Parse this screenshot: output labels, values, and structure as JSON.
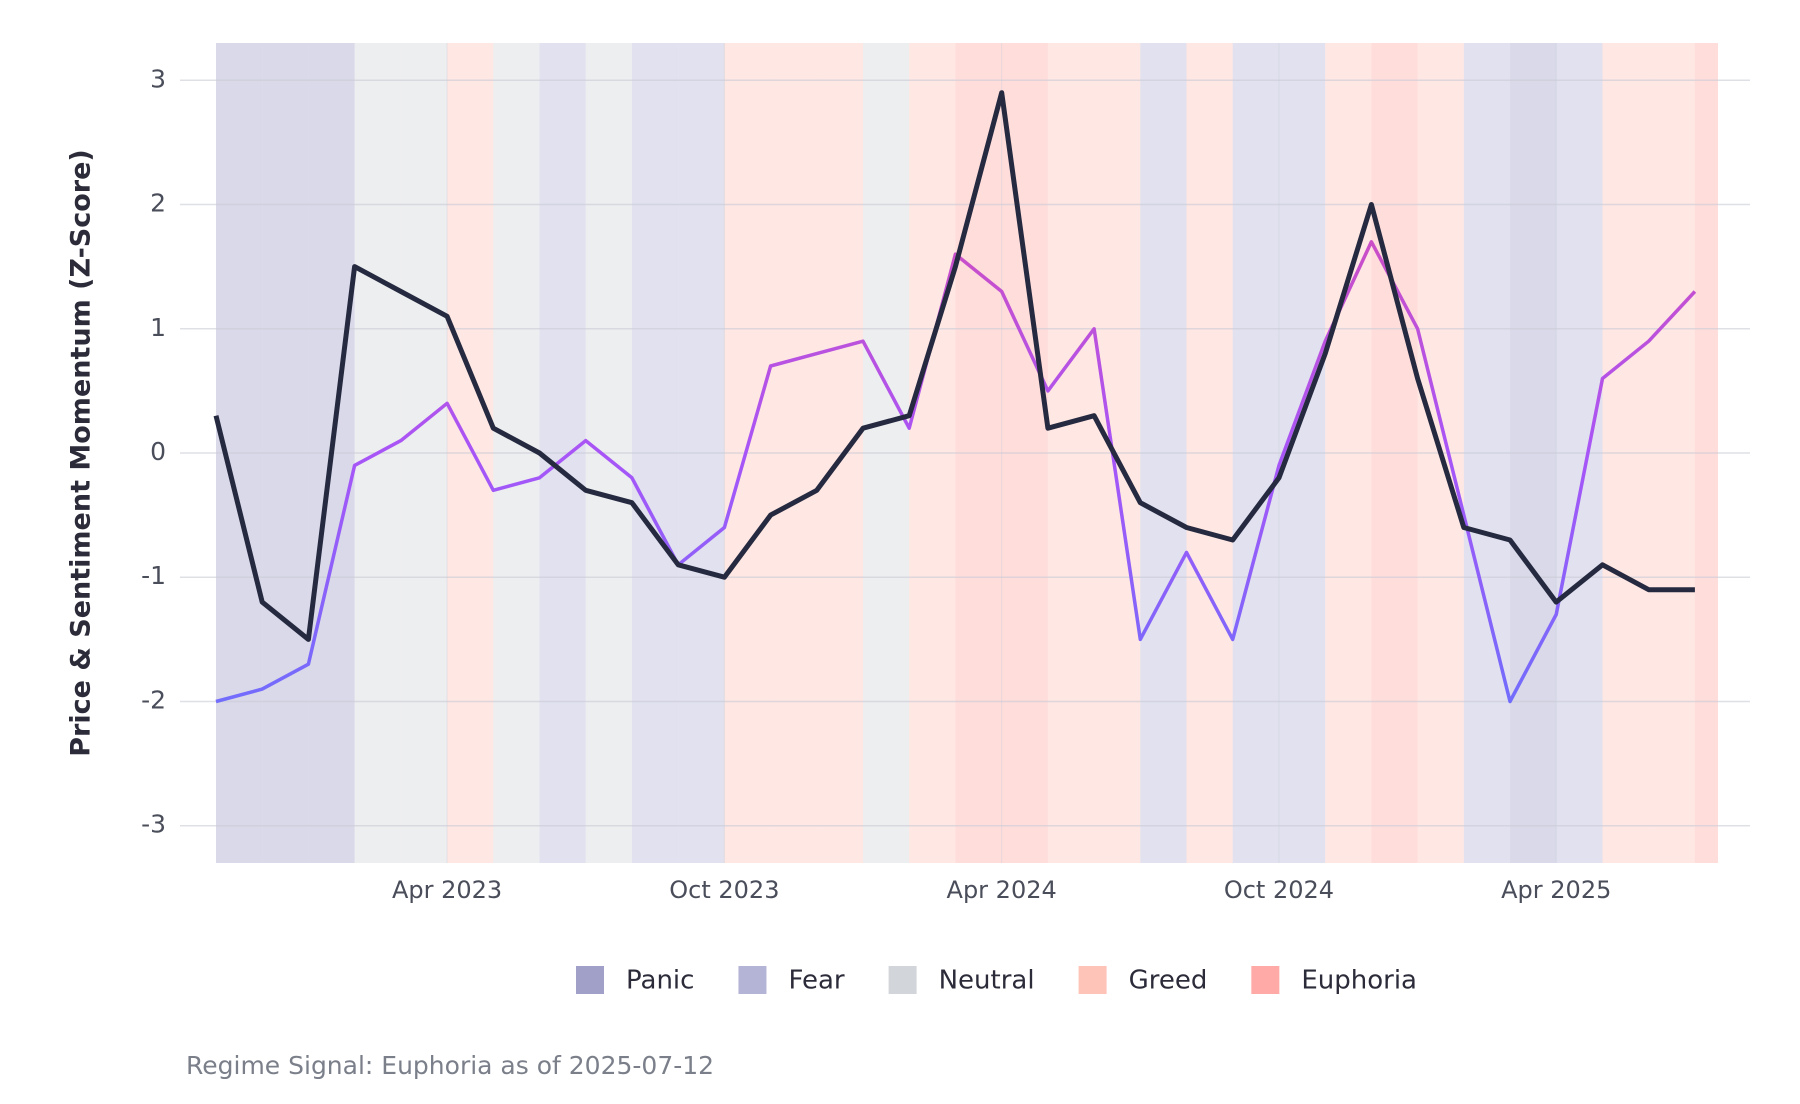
{
  "chart_data": {
    "type": "line",
    "y_label": "Price & Sentiment Momentum (Z-Score)",
    "caption": "Regime Signal: Euphoria as of 2025-07-12",
    "x": [
      "2022-11",
      "2022-12",
      "2023-01",
      "2023-02",
      "2023-03",
      "2023-04",
      "2023-05",
      "2023-06",
      "2023-07",
      "2023-08",
      "2023-09",
      "2023-10",
      "2023-11",
      "2023-12",
      "2024-01",
      "2024-02",
      "2024-03",
      "2024-04",
      "2024-05",
      "2024-06",
      "2024-07",
      "2024-08",
      "2024-09",
      "2024-10",
      "2024-11",
      "2024-12",
      "2025-01",
      "2025-02",
      "2025-03",
      "2025-04",
      "2025-05",
      "2025-06",
      "2025-07"
    ],
    "xlim": [
      "2022-11",
      "2025-07"
    ],
    "xticks": [
      {
        "value": "2023-04",
        "label": "Apr 2023"
      },
      {
        "value": "2023-10",
        "label": "Oct 2023"
      },
      {
        "value": "2024-04",
        "label": "Apr 2024"
      },
      {
        "value": "2024-10",
        "label": "Oct 2024"
      },
      {
        "value": "2025-04",
        "label": "Apr 2025"
      }
    ],
    "ylim": [
      -3.3,
      3.3
    ],
    "yticks": [
      -3,
      -2,
      -1,
      0,
      1,
      2,
      3
    ],
    "grid": true,
    "series": [
      {
        "color": "#262a40",
        "values": [
          0.3,
          -1.2,
          -1.5,
          1.5,
          1.3,
          1.1,
          0.2,
          0.0,
          -0.3,
          -0.4,
          -0.9,
          -1.0,
          -0.5,
          -0.3,
          0.2,
          0.3,
          1.5,
          2.9,
          0.2,
          0.3,
          -0.4,
          -0.6,
          -0.7,
          -0.2,
          0.8,
          2.0,
          0.6,
          -0.6,
          -0.7,
          -1.2,
          -0.9,
          -1.1,
          -1.1
        ]
      },
      {
        "color_scale": [
          "#4f7bff",
          "#a855f7",
          "#ec4899"
        ],
        "values": [
          -2.0,
          -1.9,
          -1.7,
          -0.1,
          0.1,
          0.4,
          -0.3,
          -0.2,
          0.1,
          -0.2,
          -0.9,
          -0.6,
          0.7,
          0.8,
          0.9,
          0.2,
          1.6,
          1.3,
          0.5,
          1.0,
          -1.5,
          -0.8,
          -1.5,
          -0.1,
          0.9,
          1.7,
          1.0,
          -0.5,
          -2.0,
          -1.3,
          0.6,
          0.9,
          1.3
        ]
      }
    ],
    "regimes": [
      "Panic",
      "Panic",
      "Panic",
      "Neutral",
      "Neutral",
      "Greed",
      "Neutral",
      "Fear",
      "Neutral",
      "Fear",
      "Fear",
      "Greed",
      "Greed",
      "Greed",
      "Neutral",
      "Greed",
      "Euphoria",
      "Euphoria",
      "Greed",
      "Greed",
      "Fear",
      "Greed",
      "Fear",
      "Fear",
      "Greed",
      "Euphoria",
      "Greed",
      "Fear",
      "Panic",
      "Fear",
      "Greed",
      "Greed",
      "Euphoria"
    ],
    "legend": [
      {
        "name": "Panic",
        "color": "#a0a0c8"
      },
      {
        "name": "Fear",
        "color": "#b4b4d6"
      },
      {
        "name": "Neutral",
        "color": "#d2d5da"
      },
      {
        "name": "Greed",
        "color": "#ffc4b8"
      },
      {
        "name": "Euphoria",
        "color": "#ffaaa6"
      }
    ]
  }
}
